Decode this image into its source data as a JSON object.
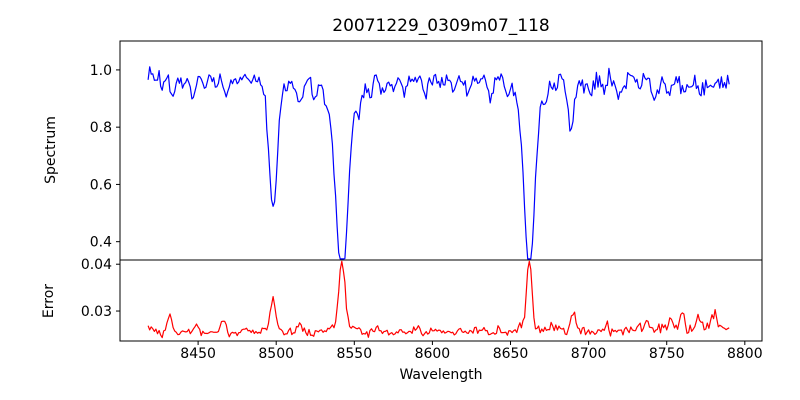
{
  "figure": {
    "background": "#ffffff",
    "text_color": "#000000",
    "frame_color": "#000000"
  },
  "chart_data": {
    "type": "line",
    "title": "20071229_0309m07_118",
    "xlabel": "Wavelength",
    "grid": false,
    "legend": false,
    "x_start": 8418,
    "x_end": 8790,
    "x_step": 1,
    "xlim": [
      8400,
      8811
    ],
    "xticks": [
      8450,
      8500,
      8550,
      8600,
      8650,
      8700,
      8750,
      8800
    ],
    "noise_seed": 13,
    "panels": [
      {
        "name": "spectrum",
        "ylabel": "Spectrum",
        "color": "#0000ff",
        "ylim": [
          0.336,
          1.101
        ],
        "yticks": [
          1.0,
          0.8,
          0.6,
          0.4
        ],
        "ytick_labels": [
          "1.0",
          "0.8",
          "0.6",
          "0.4"
        ],
        "continuum_left": 0.975,
        "continuum_right": 0.958,
        "noise_sigma": 0.014,
        "absorption_lines": [
          {
            "center": 8427,
            "min": 0.935,
            "width": 1.2
          },
          {
            "center": 8434,
            "min": 0.9,
            "width": 1.5
          },
          {
            "center": 8440,
            "min": 0.935,
            "width": 1.2
          },
          {
            "center": 8447,
            "min": 0.88,
            "width": 1.5
          },
          {
            "center": 8454,
            "min": 0.945,
            "width": 1.2
          },
          {
            "center": 8462,
            "min": 0.935,
            "width": 1.3
          },
          {
            "center": 8468,
            "min": 0.905,
            "width": 1.6
          },
          {
            "center": 8476,
            "min": 0.94,
            "width": 1.3
          },
          {
            "center": 8484,
            "min": 0.945,
            "width": 1.2
          },
          {
            "center": 8498.0,
            "min": 0.563,
            "width": 2.6,
            "wing_depth": 0.045,
            "wing_width": 6
          },
          {
            "center": 8506,
            "min": 0.94,
            "width": 1.2
          },
          {
            "center": 8514.5,
            "min": 0.875,
            "width": 1.8
          },
          {
            "center": 8525,
            "min": 0.915,
            "width": 1.4
          },
          {
            "center": 8532,
            "min": 0.935,
            "width": 1.2
          },
          {
            "center": 8542.1,
            "min": 0.372,
            "width": 3.6,
            "wing_depth": 0.11,
            "wing_width": 9
          },
          {
            "center": 8553,
            "min": 0.91,
            "width": 1.4
          },
          {
            "center": 8560,
            "min": 0.935,
            "width": 1.2
          },
          {
            "center": 8568,
            "min": 0.915,
            "width": 1.4
          },
          {
            "center": 8575,
            "min": 0.94,
            "width": 1.2
          },
          {
            "center": 8582,
            "min": 0.915,
            "width": 1.4
          },
          {
            "center": 8595,
            "min": 0.93,
            "width": 1.3
          },
          {
            "center": 8605,
            "min": 0.94,
            "width": 1.2
          },
          {
            "center": 8613,
            "min": 0.925,
            "width": 1.3
          },
          {
            "center": 8623,
            "min": 0.91,
            "width": 1.4
          },
          {
            "center": 8637,
            "min": 0.9,
            "width": 1.6
          },
          {
            "center": 8648,
            "min": 0.93,
            "width": 1.4
          },
          {
            "center": 8662.1,
            "min": 0.385,
            "width": 3.2,
            "wing_depth": 0.09,
            "wing_width": 8
          },
          {
            "center": 8673,
            "min": 0.92,
            "width": 1.3
          },
          {
            "center": 8688.6,
            "min": 0.79,
            "width": 1.8
          },
          {
            "center": 8701,
            "min": 0.93,
            "width": 1.3
          },
          {
            "center": 8710,
            "min": 0.925,
            "width": 1.3
          },
          {
            "center": 8719,
            "min": 0.897,
            "width": 1.5
          },
          {
            "center": 8733,
            "min": 0.925,
            "width": 1.3
          },
          {
            "center": 8742,
            "min": 0.912,
            "width": 1.3
          },
          {
            "center": 8751,
            "min": 0.903,
            "width": 1.5
          },
          {
            "center": 8762,
            "min": 0.922,
            "width": 1.3
          },
          {
            "center": 8771,
            "min": 0.912,
            "width": 1.4
          },
          {
            "center": 8779,
            "min": 0.93,
            "width": 1.2
          },
          {
            "center": 8787,
            "min": 0.92,
            "width": 1.3
          }
        ]
      },
      {
        "name": "error",
        "ylabel": "Error",
        "color": "#ff0000",
        "ylim": [
          0.0236,
          0.0409
        ],
        "yticks": [
          0.04,
          0.03
        ],
        "ytick_labels": [
          "0.04",
          "0.03"
        ],
        "baseline": 0.0253,
        "baseline_right_rise": 0.001,
        "noise_sigma": 0.00035,
        "peaks": [
          {
            "center": 8420,
            "peak": 0.0266,
            "width": 2.0
          },
          {
            "center": 8432,
            "peak": 0.0292,
            "width": 1.5
          },
          {
            "center": 8449,
            "peak": 0.0268,
            "width": 1.5
          },
          {
            "center": 8466,
            "peak": 0.0284,
            "width": 1.6
          },
          {
            "center": 8481,
            "peak": 0.0265,
            "width": 1.5
          },
          {
            "center": 8498,
            "peak": 0.0318,
            "width": 1.8,
            "wing_height": 0.0008,
            "wing_width": 5
          },
          {
            "center": 8515,
            "peak": 0.0274,
            "width": 1.6
          },
          {
            "center": 8542.1,
            "peak": 0.039,
            "width": 1.8,
            "wing_height": 0.0018,
            "wing_width": 6
          },
          {
            "center": 8565,
            "peak": 0.0262,
            "width": 1.5
          },
          {
            "center": 8590,
            "peak": 0.0262,
            "width": 1.5
          },
          {
            "center": 8662.1,
            "peak": 0.0398,
            "width": 1.5,
            "wing_height": 0.0013,
            "wing_width": 5
          },
          {
            "center": 8676,
            "peak": 0.0268,
            "width": 1.5
          },
          {
            "center": 8690,
            "peak": 0.0287,
            "width": 1.6
          },
          {
            "center": 8712,
            "peak": 0.0265,
            "width": 1.5
          },
          {
            "center": 8738,
            "peak": 0.0268,
            "width": 1.5
          },
          {
            "center": 8752,
            "peak": 0.0272,
            "width": 1.5
          },
          {
            "center": 8760,
            "peak": 0.028,
            "width": 1.5
          },
          {
            "center": 8770,
            "peak": 0.0282,
            "width": 1.5
          },
          {
            "center": 8780,
            "peak": 0.0288,
            "width": 1.8
          }
        ]
      }
    ]
  }
}
